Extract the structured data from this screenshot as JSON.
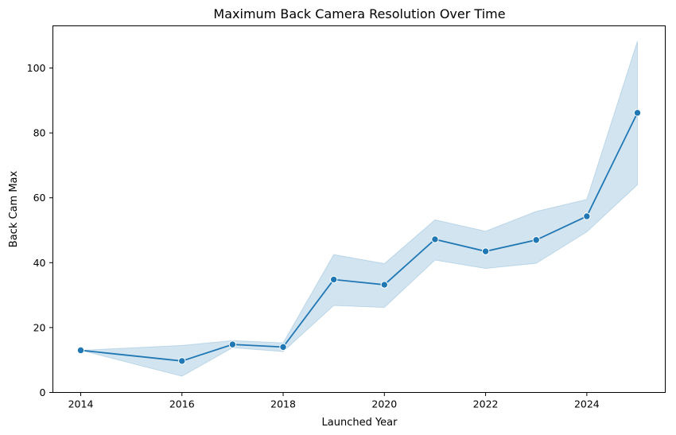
{
  "chart_data": {
    "type": "line",
    "title": "Maximum Back Camera Resolution Over Time",
    "xlabel": "Launched Year",
    "ylabel": "Back Cam Max",
    "xlim": [
      2013.45,
      2025.55
    ],
    "ylim": [
      0,
      113
    ],
    "xticks": [
      2014,
      2016,
      2018,
      2020,
      2022,
      2024
    ],
    "yticks": [
      0,
      20,
      40,
      60,
      80,
      100
    ],
    "grid": false,
    "legend": "none",
    "series": [
      {
        "x": [
          2014,
          2016,
          2017,
          2018,
          2019,
          2020,
          2021,
          2022,
          2023,
          2024,
          2025
        ],
        "y": [
          13,
          9.7,
          14.8,
          14,
          34.8,
          33.2,
          47.2,
          43.5,
          47,
          54.3,
          86.2
        ],
        "ci_lower": [
          13,
          5,
          13.8,
          12.6,
          26.8,
          26.2,
          40.8,
          38.2,
          39.8,
          49.5,
          64
        ],
        "ci_upper": [
          13,
          14.5,
          16,
          15.3,
          42.5,
          39.7,
          53.2,
          49.7,
          55.8,
          59.5,
          108.3
        ],
        "color": "#1f77b4",
        "band_color": "#1f77b4",
        "marker": "circle"
      }
    ]
  }
}
